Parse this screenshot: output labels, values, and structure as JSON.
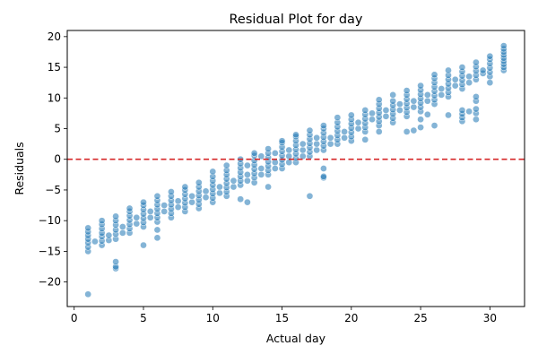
{
  "chart_data": {
    "type": "scatter",
    "title": "Residual Plot for day",
    "xlabel": "Actual day",
    "ylabel": "Residuals",
    "xlim": [
      -0.5,
      32.5
    ],
    "ylim": [
      -24,
      21
    ],
    "xticks": [
      0,
      5,
      10,
      15,
      20,
      25,
      30
    ],
    "yticks": [
      -20,
      -15,
      -10,
      -5,
      0,
      5,
      10,
      15,
      20
    ],
    "grid": false,
    "reference_line": {
      "y": 0,
      "style": "dashed",
      "color": "#d62728"
    },
    "point_color": "#1f77b4",
    "point_alpha": 0.55,
    "series": [
      {
        "points": [
          [
            1,
            -22.0
          ],
          [
            1,
            -15.0
          ],
          [
            1,
            -14.3
          ],
          [
            1,
            -13.6
          ],
          [
            1,
            -13.0
          ],
          [
            1,
            -12.4
          ],
          [
            1,
            -11.8
          ],
          [
            1,
            -11.2
          ],
          [
            1.5,
            -13.4
          ],
          [
            2,
            -14.0
          ],
          [
            2,
            -13.3
          ],
          [
            2,
            -12.6
          ],
          [
            2,
            -12.0
          ],
          [
            2,
            -11.3
          ],
          [
            2,
            -10.6
          ],
          [
            2,
            -10.0
          ],
          [
            2.5,
            -13.2
          ],
          [
            2.5,
            -12.4
          ],
          [
            3,
            -17.8
          ],
          [
            3,
            -17.5
          ],
          [
            3,
            -16.7
          ],
          [
            3,
            -13.0
          ],
          [
            3,
            -12.2
          ],
          [
            3,
            -11.5
          ],
          [
            3,
            -10.7
          ],
          [
            3,
            -10.0
          ],
          [
            3,
            -9.3
          ],
          [
            3.5,
            -12.0
          ],
          [
            3.5,
            -11.0
          ],
          [
            4,
            -12.0
          ],
          [
            4,
            -11.3
          ],
          [
            4,
            -10.6
          ],
          [
            4,
            -9.9
          ],
          [
            4,
            -9.2
          ],
          [
            4,
            -8.5
          ],
          [
            4,
            -8.0
          ],
          [
            4.5,
            -10.5
          ],
          [
            4.5,
            -9.5
          ],
          [
            5,
            -14.0
          ],
          [
            5,
            -11.0
          ],
          [
            5,
            -10.3
          ],
          [
            5,
            -9.6
          ],
          [
            5,
            -8.9
          ],
          [
            5,
            -8.2
          ],
          [
            5,
            -7.5
          ],
          [
            5,
            -7.0
          ],
          [
            5.5,
            -9.5
          ],
          [
            5.5,
            -8.5
          ],
          [
            6,
            -12.8
          ],
          [
            6,
            -11.5
          ],
          [
            6,
            -10.2
          ],
          [
            6,
            -9.5
          ],
          [
            6,
            -8.8
          ],
          [
            6,
            -8.1
          ],
          [
            6,
            -7.4
          ],
          [
            6,
            -6.7
          ],
          [
            6,
            -6.0
          ],
          [
            6.5,
            -8.5
          ],
          [
            6.5,
            -7.5
          ],
          [
            7,
            -9.5
          ],
          [
            7,
            -8.8
          ],
          [
            7,
            -8.1
          ],
          [
            7,
            -7.4
          ],
          [
            7,
            -6.7
          ],
          [
            7,
            -6.0
          ],
          [
            7,
            -5.3
          ],
          [
            7.5,
            -7.8
          ],
          [
            7.5,
            -6.8
          ],
          [
            8,
            -8.5
          ],
          [
            8,
            -7.8
          ],
          [
            8,
            -7.1
          ],
          [
            8,
            -6.4
          ],
          [
            8,
            -5.7
          ],
          [
            8,
            -5.0
          ],
          [
            8,
            -4.5
          ],
          [
            8.5,
            -7.0
          ],
          [
            8.5,
            -6.0
          ],
          [
            9,
            -8.0
          ],
          [
            9,
            -7.3
          ],
          [
            9,
            -6.6
          ],
          [
            9,
            -5.9
          ],
          [
            9,
            -5.2
          ],
          [
            9,
            -4.5
          ],
          [
            9,
            -3.8
          ],
          [
            9.5,
            -6.2
          ],
          [
            9.5,
            -5.2
          ],
          [
            10,
            -7.0
          ],
          [
            10,
            -6.3
          ],
          [
            10,
            -5.6
          ],
          [
            10,
            -4.9
          ],
          [
            10,
            -4.2
          ],
          [
            10,
            -3.5
          ],
          [
            10,
            -2.8
          ],
          [
            10,
            -2.0
          ],
          [
            10.5,
            -5.5
          ],
          [
            10.5,
            -4.5
          ],
          [
            11,
            -6.0
          ],
          [
            11,
            -5.3
          ],
          [
            11,
            -4.6
          ],
          [
            11,
            -3.9
          ],
          [
            11,
            -3.2
          ],
          [
            11,
            -2.5
          ],
          [
            11,
            -1.8
          ],
          [
            11,
            -1.0
          ],
          [
            11.5,
            -4.5
          ],
          [
            11.5,
            -3.5
          ],
          [
            12,
            -6.5
          ],
          [
            12,
            -4.2
          ],
          [
            12,
            -3.5
          ],
          [
            12,
            -2.8
          ],
          [
            12,
            -2.1
          ],
          [
            12,
            -1.4
          ],
          [
            12,
            -0.7
          ],
          [
            12,
            0.0
          ],
          [
            12.5,
            -7.0
          ],
          [
            12.5,
            -3.5
          ],
          [
            12.5,
            -2.5
          ],
          [
            12.5,
            -1.0
          ],
          [
            13,
            -3.8
          ],
          [
            13,
            -3.0
          ],
          [
            13,
            -2.3
          ],
          [
            13,
            -1.6
          ],
          [
            13,
            -0.9
          ],
          [
            13,
            -0.2
          ],
          [
            13,
            0.6
          ],
          [
            13,
            1.0
          ],
          [
            13.5,
            -2.5
          ],
          [
            13.5,
            -1.5
          ],
          [
            13.5,
            0.5
          ],
          [
            14,
            -4.5
          ],
          [
            14,
            -2.5
          ],
          [
            14,
            -1.8
          ],
          [
            14,
            -1.1
          ],
          [
            14,
            -0.4
          ],
          [
            14,
            0.3
          ],
          [
            14,
            1.0
          ],
          [
            14,
            1.7
          ],
          [
            14.5,
            -1.5
          ],
          [
            14.5,
            -0.5
          ],
          [
            14.5,
            1.0
          ],
          [
            15,
            -1.5
          ],
          [
            15,
            -0.8
          ],
          [
            15,
            -0.1
          ],
          [
            15,
            0.6
          ],
          [
            15,
            1.3
          ],
          [
            15,
            2.0
          ],
          [
            15,
            2.7
          ],
          [
            15,
            3.0
          ],
          [
            15.5,
            -0.5
          ],
          [
            15.5,
            0.5
          ],
          [
            15.5,
            1.5
          ],
          [
            16,
            -0.5
          ],
          [
            16,
            0.2
          ],
          [
            16,
            0.9
          ],
          [
            16,
            1.6
          ],
          [
            16,
            2.3
          ],
          [
            16,
            3.0
          ],
          [
            16,
            3.7
          ],
          [
            16,
            4.0
          ],
          [
            16.5,
            0.5
          ],
          [
            16.5,
            1.5
          ],
          [
            16.5,
            2.5
          ],
          [
            17,
            -6.0
          ],
          [
            17,
            0.5
          ],
          [
            17,
            1.2
          ],
          [
            17,
            1.9
          ],
          [
            17,
            2.6
          ],
          [
            17,
            3.3
          ],
          [
            17,
            4.0
          ],
          [
            17,
            4.7
          ],
          [
            17.5,
            1.5
          ],
          [
            17.5,
            2.5
          ],
          [
            17.5,
            3.5
          ],
          [
            18,
            -3.0
          ],
          [
            18,
            -2.8
          ],
          [
            18,
            -1.5
          ],
          [
            18,
            1.5
          ],
          [
            18,
            2.2
          ],
          [
            18,
            2.9
          ],
          [
            18,
            3.6
          ],
          [
            18,
            4.3
          ],
          [
            18,
            5.0
          ],
          [
            18,
            5.5
          ],
          [
            18.5,
            2.5
          ],
          [
            18.5,
            3.5
          ],
          [
            19,
            2.5
          ],
          [
            19,
            3.2
          ],
          [
            19,
            3.9
          ],
          [
            19,
            4.6
          ],
          [
            19,
            5.3
          ],
          [
            19,
            6.0
          ],
          [
            19,
            6.8
          ],
          [
            19.5,
            3.5
          ],
          [
            19.5,
            4.5
          ],
          [
            20,
            3.0
          ],
          [
            20,
            3.7
          ],
          [
            20,
            4.4
          ],
          [
            20,
            5.1
          ],
          [
            20,
            5.8
          ],
          [
            20,
            6.5
          ],
          [
            20,
            7.2
          ],
          [
            20.5,
            5.0
          ],
          [
            20.5,
            6.0
          ],
          [
            21,
            3.2
          ],
          [
            21,
            4.5
          ],
          [
            21,
            5.2
          ],
          [
            21,
            5.9
          ],
          [
            21,
            6.6
          ],
          [
            21,
            7.3
          ],
          [
            21,
            8.0
          ],
          [
            21.5,
            6.5
          ],
          [
            21.5,
            7.5
          ],
          [
            22,
            4.5
          ],
          [
            22,
            5.5
          ],
          [
            22,
            6.2
          ],
          [
            22,
            6.9
          ],
          [
            22,
            7.6
          ],
          [
            22,
            8.3
          ],
          [
            22,
            9.0
          ],
          [
            22,
            9.7
          ],
          [
            22.5,
            7.0
          ],
          [
            22.5,
            8.0
          ],
          [
            23,
            6.0
          ],
          [
            23,
            6.7
          ],
          [
            23,
            7.4
          ],
          [
            23,
            8.1
          ],
          [
            23,
            8.8
          ],
          [
            23,
            9.5
          ],
          [
            23,
            10.5
          ],
          [
            23.5,
            8.0
          ],
          [
            23.5,
            9.0
          ],
          [
            24,
            4.5
          ],
          [
            24,
            7.0
          ],
          [
            24,
            7.7
          ],
          [
            24,
            8.4
          ],
          [
            24,
            9.1
          ],
          [
            24,
            9.8
          ],
          [
            24,
            10.5
          ],
          [
            24,
            11.2
          ],
          [
            24.5,
            4.7
          ],
          [
            24.5,
            8.5
          ],
          [
            24.5,
            9.5
          ],
          [
            25,
            5.2
          ],
          [
            25,
            6.5
          ],
          [
            25,
            7.8
          ],
          [
            25,
            8.5
          ],
          [
            25,
            9.2
          ],
          [
            25,
            9.9
          ],
          [
            25,
            10.6
          ],
          [
            25,
            11.3
          ],
          [
            25,
            12.0
          ],
          [
            25.5,
            7.3
          ],
          [
            25.5,
            9.5
          ],
          [
            25.5,
            10.5
          ],
          [
            26,
            5.5
          ],
          [
            26,
            9.0
          ],
          [
            26,
            9.7
          ],
          [
            26,
            10.4
          ],
          [
            26,
            11.1
          ],
          [
            26,
            11.8
          ],
          [
            26,
            12.5
          ],
          [
            26,
            13.2
          ],
          [
            26,
            13.8
          ],
          [
            26.5,
            10.5
          ],
          [
            26.5,
            11.5
          ],
          [
            27,
            7.2
          ],
          [
            27,
            10.2
          ],
          [
            27,
            10.9
          ],
          [
            27,
            11.6
          ],
          [
            27,
            12.3
          ],
          [
            27,
            13.0
          ],
          [
            27,
            13.7
          ],
          [
            27,
            14.5
          ],
          [
            27.5,
            12.0
          ],
          [
            27.5,
            13.0
          ],
          [
            28,
            6.2
          ],
          [
            28,
            6.8
          ],
          [
            28,
            7.4
          ],
          [
            28,
            8.0
          ],
          [
            28,
            11.5
          ],
          [
            28,
            12.2
          ],
          [
            28,
            12.9
          ],
          [
            28,
            13.6
          ],
          [
            28,
            14.3
          ],
          [
            28,
            15.0
          ],
          [
            28.5,
            7.8
          ],
          [
            28.5,
            12.5
          ],
          [
            28.5,
            13.5
          ],
          [
            29,
            6.5
          ],
          [
            29,
            7.5
          ],
          [
            29,
            8.2
          ],
          [
            29,
            9.5
          ],
          [
            29,
            10.2
          ],
          [
            29,
            13.0
          ],
          [
            29,
            13.7
          ],
          [
            29,
            14.4
          ],
          [
            29,
            15.1
          ],
          [
            29,
            15.8
          ],
          [
            29.5,
            14.0
          ],
          [
            29.5,
            14.5
          ],
          [
            30,
            12.5
          ],
          [
            30,
            13.5
          ],
          [
            30,
            14.2
          ],
          [
            30,
            14.9
          ],
          [
            30,
            15.6
          ],
          [
            30,
            16.3
          ],
          [
            30,
            16.8
          ],
          [
            31,
            14.5
          ],
          [
            31,
            15.0
          ],
          [
            31,
            15.5
          ],
          [
            31,
            16.0
          ],
          [
            31,
            16.5
          ],
          [
            31,
            17.0
          ],
          [
            31,
            17.5
          ],
          [
            31,
            18.0
          ],
          [
            31,
            18.5
          ]
        ]
      }
    ]
  }
}
